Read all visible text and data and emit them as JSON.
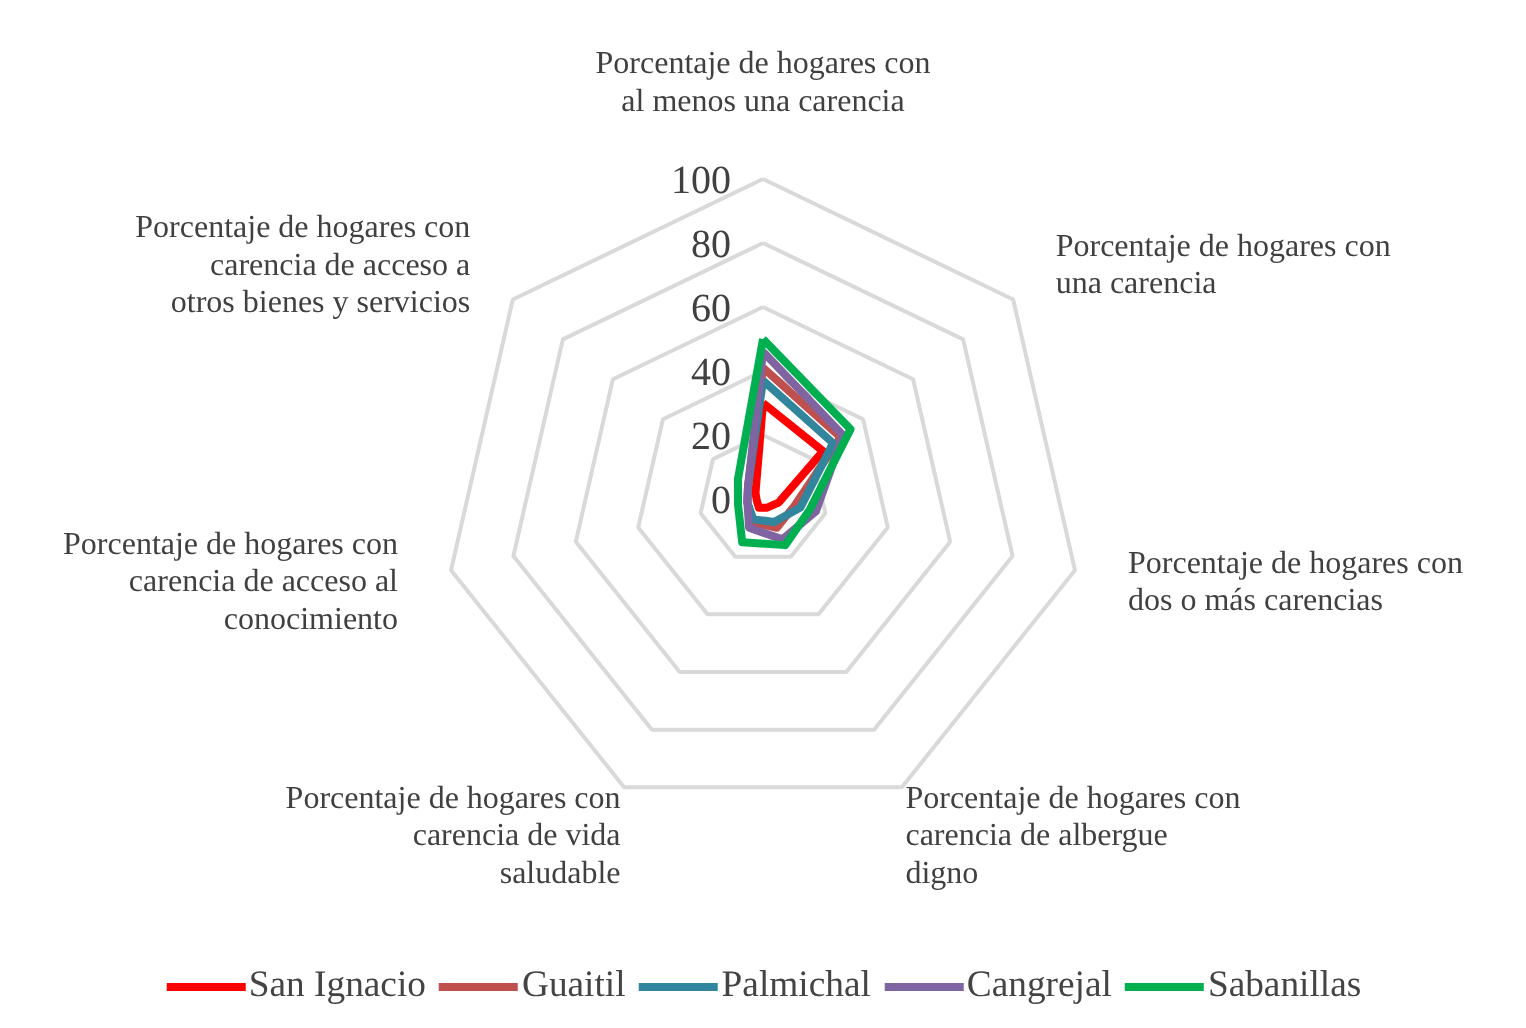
{
  "chart_data": {
    "type": "radar",
    "categories": [
      "Porcentaje de hogares con al menos una carencia",
      "Porcentaje de hogares con una carencia",
      "Porcentaje de hogares con dos o más carencias",
      "Porcentaje de hogares con carencia de albergue digno",
      "Porcentaje de hogares con carencia de vida saludable",
      "Porcentaje de hogares con carencia de acceso al conocimiento",
      "Porcentaje de hogares con carencia de acceso a otros bienes y servicios"
    ],
    "series": [
      {
        "name": "San Ignacio",
        "color": "#ff0000",
        "values": [
          30,
          24,
          5,
          3,
          3,
          2,
          3
        ]
      },
      {
        "name": "Guaitil",
        "color": "#c0504d",
        "values": [
          41,
          31,
          10,
          10,
          8,
          5,
          6
        ]
      },
      {
        "name": "Palmichal",
        "color": "#31859c",
        "values": [
          37,
          28,
          12,
          8,
          7,
          5,
          6
        ]
      },
      {
        "name": "Cangrejal",
        "color": "#8064a2",
        "values": [
          46,
          32,
          17,
          14,
          10,
          5,
          6
        ]
      },
      {
        "name": "Sabanillas",
        "color": "#00b050",
        "values": [
          50,
          35,
          15,
          16,
          15,
          8,
          10
        ]
      }
    ],
    "ylim": [
      0,
      100
    ],
    "yticks": [
      0,
      20,
      40,
      60,
      80,
      100
    ],
    "grid": true,
    "legend": "bottom"
  }
}
